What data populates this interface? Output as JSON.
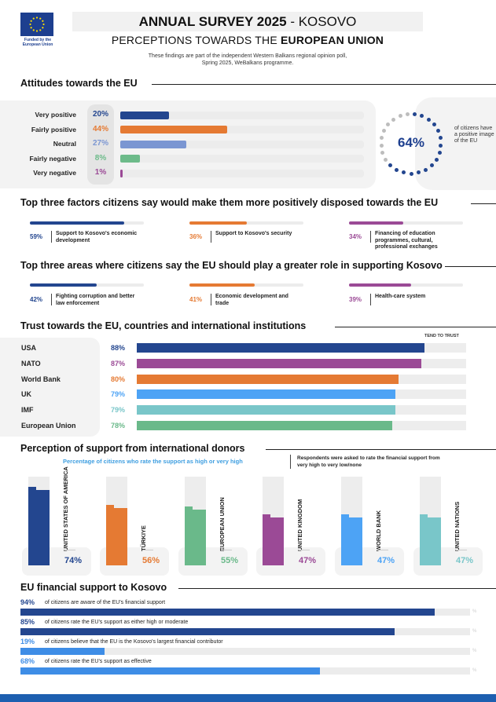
{
  "header": {
    "funded_by": "Funded by the European Union",
    "title_bold": "ANNUAL SURVEY 2025",
    "title_rest": " - KOSOVO",
    "subtitle_pre": "PERCEPTIONS TOWARDS THE ",
    "subtitle_bold": "EUROPEAN UNION",
    "intro_line1": "These findings are part of the independent Western Balkans regional opinion poll,",
    "intro_line2": "Spring 2025, WeBalkans programme."
  },
  "colors": {
    "navy": "#23468f",
    "orange": "#e57a33",
    "lightblue": "#7b96d2",
    "green": "#6dbb8a",
    "purple": "#9b4a96",
    "skyblue": "#4da3f5",
    "teal": "#79c6c9",
    "eugreen": "#6ab98a",
    "brightblue": "#3e8de6"
  },
  "attitudes": {
    "title": "Attitudes towards the EU",
    "rows": [
      {
        "label": "Very positive",
        "pct": "20%",
        "value": 20,
        "color": "#23468f"
      },
      {
        "label": "Fairly positive",
        "pct": "44%",
        "value": 44,
        "color": "#e57a33"
      },
      {
        "label": "Neutral",
        "pct": "27%",
        "value": 27,
        "color": "#7b96d2"
      },
      {
        "label": "Fairly negative",
        "pct": "8%",
        "value": 8,
        "color": "#6dbb8a"
      },
      {
        "label": "Very negative",
        "pct": "1%",
        "value": 1,
        "color": "#9b4a96"
      }
    ],
    "positive_pct": "64%",
    "positive_value": 64,
    "positive_note": "of citizens have a positive image of the EU"
  },
  "factors": {
    "title": "Top three factors citizens say would make them more positively disposed towards the EU",
    "items": [
      {
        "pct": "59%",
        "value": 59,
        "text": "Support to Kosovo's economic development",
        "color": "#23468f"
      },
      {
        "pct": "36%",
        "value": 36,
        "text": "Support to Kosovo's security",
        "color": "#e57a33"
      },
      {
        "pct": "34%",
        "value": 34,
        "text": "Financing of education programmes, cultural, professional exchanges",
        "color": "#9b4a96"
      }
    ]
  },
  "areas": {
    "title": "Top three areas where citizens say the EU should play a greater role in supporting Kosovo",
    "items": [
      {
        "pct": "42%",
        "value": 42,
        "text": "Fighting corruption and better law enforcement",
        "color": "#23468f"
      },
      {
        "pct": "41%",
        "value": 41,
        "text": "Economic development and trade",
        "color": "#e57a33"
      },
      {
        "pct": "39%",
        "value": 39,
        "text": "Health-care system",
        "color": "#9b4a96"
      }
    ]
  },
  "trust": {
    "title": "Trust towards the EU, countries and international institutions",
    "legend": "TEND TO TRUST",
    "rows": [
      {
        "label": "USA",
        "pct": "88%",
        "value": 88,
        "color": "#23468f"
      },
      {
        "label": "NATO",
        "pct": "87%",
        "value": 87,
        "color": "#9b4a96"
      },
      {
        "label": "World Bank",
        "pct": "80%",
        "value": 80,
        "color": "#e57a33"
      },
      {
        "label": "UK",
        "pct": "79%",
        "value": 79,
        "color": "#4da3f5"
      },
      {
        "label": "IMF",
        "pct": "79%",
        "value": 79,
        "color": "#79c6c9"
      },
      {
        "label": "European Union",
        "pct": "78%",
        "value": 78,
        "color": "#6ab98a"
      }
    ]
  },
  "donors": {
    "title": "Perception of support from international donors",
    "caption": "Percentage of citizens who rate the support as high or very high",
    "note": "Respondents were asked to rate the financial support from very high to very low/none",
    "items": [
      {
        "name": "UNITED STATES OF AMERICA",
        "pct": "74%",
        "value": 74,
        "color": "#23468f"
      },
      {
        "name": "TÜRKIYE",
        "pct": "56%",
        "value": 56,
        "color": "#e57a33"
      },
      {
        "name": "EUROPEAN UNION",
        "pct": "55%",
        "value": 55,
        "color": "#6ab98a"
      },
      {
        "name": "UNITED KINGDOM",
        "pct": "47%",
        "value": 47,
        "color": "#9b4a96"
      },
      {
        "name": "WORLD BANK",
        "pct": "47%",
        "value": 47,
        "color": "#4da3f5"
      },
      {
        "name": "UNITED NATIONS",
        "pct": "47%",
        "value": 47,
        "color": "#79c6c9"
      }
    ]
  },
  "financial": {
    "title": "EU financial support to Kosovo",
    "end_mark": "%",
    "rows": [
      {
        "pct": "94%",
        "value": 94,
        "text": "of citizens are aware of the EU's financial support",
        "color": "#23468f"
      },
      {
        "pct": "85%",
        "value": 85,
        "text": "of citizens rate the EU's support as either high or moderate",
        "color": "#23468f"
      },
      {
        "pct": "19%",
        "value": 19,
        "text": "of citizens believe that the EU is the Kosovo's largest financial contributor",
        "color": "#3e8de6"
      },
      {
        "pct": "68%",
        "value": 68,
        "text": "of citizens rate the EU's support as effective",
        "color": "#3e8de6"
      }
    ]
  }
}
